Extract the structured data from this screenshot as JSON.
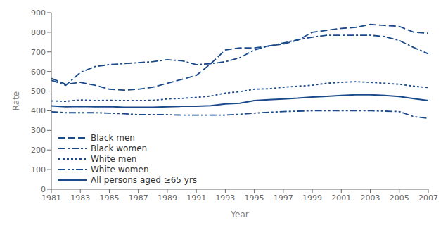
{
  "chart_data": {
    "type": "line",
    "xlabel": "Year",
    "ylabel": "Rate",
    "x": [
      1981,
      1982,
      1983,
      1984,
      1985,
      1986,
      1987,
      1988,
      1989,
      1990,
      1991,
      1992,
      1993,
      1994,
      1995,
      1996,
      1997,
      1998,
      1999,
      2000,
      2001,
      2002,
      2003,
      2004,
      2005,
      2006,
      2007
    ],
    "series": [
      {
        "name": "Black men",
        "color": "#1a4a8a",
        "line_style": "dashed",
        "values": [
          565,
          535,
          545,
          530,
          510,
          505,
          510,
          520,
          540,
          560,
          580,
          640,
          710,
          720,
          720,
          730,
          740,
          760,
          800,
          810,
          820,
          825,
          840,
          835,
          830,
          800,
          795
        ]
      },
      {
        "name": "Black women",
        "color": "#1a4a8a",
        "line_style": "dashdot",
        "values": [
          555,
          530,
          595,
          625,
          635,
          640,
          645,
          650,
          660,
          655,
          635,
          640,
          650,
          670,
          710,
          730,
          745,
          762,
          775,
          785,
          785,
          785,
          785,
          778,
          758,
          722,
          690
        ]
      },
      {
        "name": "White men",
        "color": "#1a4a8a",
        "line_style": "dotted",
        "values": [
          450,
          448,
          455,
          452,
          453,
          452,
          452,
          453,
          460,
          463,
          468,
          475,
          490,
          497,
          510,
          512,
          520,
          525,
          530,
          540,
          545,
          548,
          545,
          540,
          535,
          525,
          518
        ]
      },
      {
        "name": "White women",
        "color": "#1a4a8a",
        "line_style": "dashdotdot",
        "values": [
          395,
          390,
          390,
          390,
          388,
          385,
          380,
          380,
          380,
          378,
          378,
          378,
          378,
          382,
          388,
          392,
          396,
          398,
          400,
          400,
          400,
          400,
          400,
          398,
          396,
          370,
          362
        ]
      },
      {
        "name": "All persons aged ≥65 yrs",
        "color": "#1a4a8a",
        "line_style": "solid",
        "values": [
          425,
          420,
          422,
          420,
          421,
          418,
          418,
          418,
          420,
          423,
          423,
          426,
          435,
          438,
          452,
          456,
          460,
          464,
          470,
          473,
          478,
          481,
          481,
          478,
          472,
          462,
          452
        ]
      }
    ],
    "xlim": [
      1981,
      2007
    ],
    "xticks": [
      1981,
      1983,
      1985,
      1987,
      1989,
      1991,
      1993,
      1995,
      1997,
      1999,
      2001,
      2003,
      2005,
      2007
    ],
    "ylim": [
      0,
      900
    ],
    "yticks": [
      0,
      100,
      200,
      300,
      400,
      500,
      600,
      700,
      800,
      900
    ],
    "grid": false,
    "legend": "lower left"
  }
}
